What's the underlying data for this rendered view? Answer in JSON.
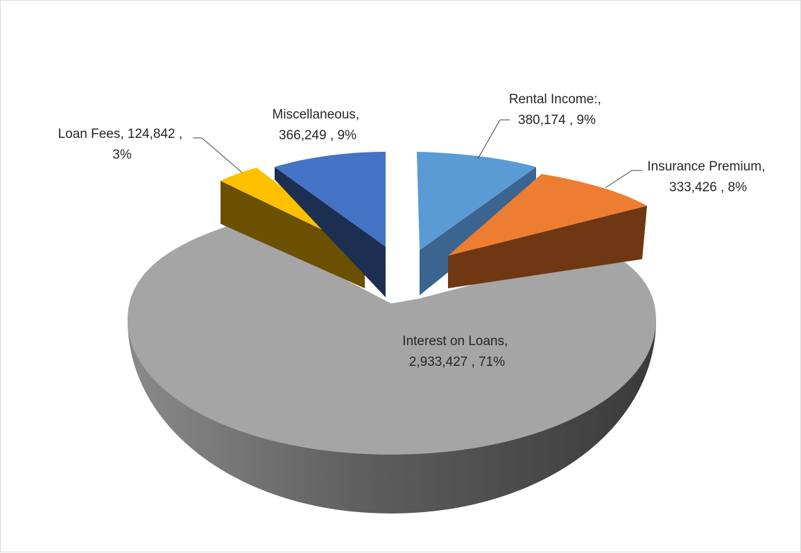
{
  "chart_data": {
    "type": "pie",
    "title": "",
    "slices": [
      {
        "key": "interest",
        "name": "Interest on Loans",
        "value": 2933427,
        "percent": 71,
        "label_lines": [
          "Interest on Loans,",
          "2,933,427 , 71%"
        ],
        "top_color": "#a5a5a5",
        "side_color": "#7c7c7c"
      },
      {
        "key": "loan-fees",
        "name": "Loan Fees",
        "value": 124842,
        "percent": 3,
        "label_lines": [
          "Loan Fees, 124,842 ,",
          "3%"
        ],
        "top_color": "#ffc000",
        "side_color": "#6b5000"
      },
      {
        "key": "misc",
        "name": "Miscellaneous",
        "value": 366249,
        "percent": 9,
        "label_lines": [
          "Miscellaneous,",
          "366,249 , 9%"
        ],
        "top_color": "#4472c4",
        "side_color": "#1c2f52"
      },
      {
        "key": "rental",
        "name": "Rental Income:",
        "value": 380174,
        "percent": 9,
        "label_lines": [
          "Rental Income:,",
          "380,174 , 9%"
        ],
        "top_color": "#5b9bd5",
        "side_color": "#3b6590"
      },
      {
        "key": "insurance",
        "name": "Insurance Premium",
        "value": 333426,
        "percent": 8,
        "label_lines": [
          "Insurance Premium,",
          "333,426 , 8%"
        ],
        "top_color": "#ed7d31",
        "side_color": "#6f3812"
      }
    ],
    "legend": "none",
    "style": "3d-exploded"
  }
}
